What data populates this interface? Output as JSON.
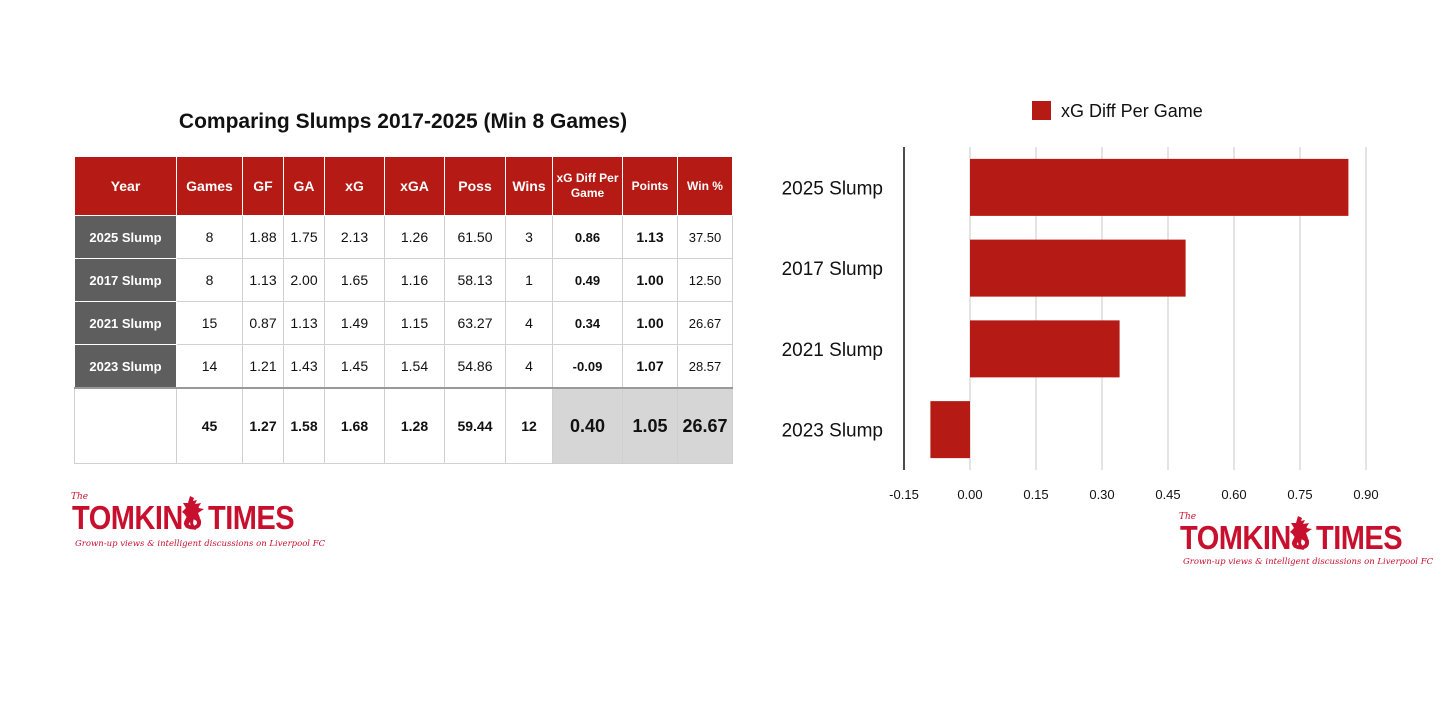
{
  "table": {
    "title": "Comparing Slumps 2017-2025 (Min 8 Games)",
    "headers": [
      "Year",
      "Games",
      "GF",
      "GA",
      "xG",
      "xGA",
      "Poss",
      "Wins",
      "xG Diff Per Game",
      "Points",
      "Win %"
    ],
    "rows": [
      [
        "2025 Slump",
        "8",
        "1.88",
        "1.75",
        "2.13",
        "1.26",
        "61.50",
        "3",
        "0.86",
        "1.13",
        "37.50"
      ],
      [
        "2017 Slump",
        "8",
        "1.13",
        "2.00",
        "1.65",
        "1.16",
        "58.13",
        "1",
        "0.49",
        "1.00",
        "12.50"
      ],
      [
        "2021 Slump",
        "15",
        "0.87",
        "1.13",
        "1.49",
        "1.15",
        "63.27",
        "4",
        "0.34",
        "1.00",
        "26.67"
      ],
      [
        "2023 Slump",
        "14",
        "1.21",
        "1.43",
        "1.45",
        "1.54",
        "54.86",
        "4",
        "-0.09",
        "1.07",
        "28.57"
      ]
    ],
    "totals": [
      "",
      "45",
      "1.27",
      "1.58",
      "1.68",
      "1.28",
      "59.44",
      "12",
      "0.40",
      "1.05",
      "26.67"
    ]
  },
  "logo_left": {
    "the": "The",
    "name_a": "TOMKINS",
    "name_b": "TIMES",
    "tagline": "Grown-up views & intelligent discussions on Liverpool FC"
  },
  "logo_right": {
    "the": "The",
    "name_a": "TOMKINS",
    "name_b": "TIMES",
    "tagline": "Grown-up views & intelligent discussions on Liverpool FC"
  },
  "chart_data": {
    "type": "bar",
    "orientation": "horizontal",
    "categories": [
      "2025 Slump",
      "2017 Slump",
      "2021 Slump",
      "2023 Slump"
    ],
    "series": [
      {
        "name": "xG Diff Per Game",
        "values": [
          0.86,
          0.49,
          0.34,
          -0.09
        ]
      }
    ],
    "xlim": [
      -0.15,
      0.9
    ],
    "xticks": [
      "-0.15",
      "0.00",
      "0.15",
      "0.30",
      "0.45",
      "0.60",
      "0.75",
      "0.90"
    ],
    "grid": true,
    "legend": "top-center",
    "colors": {
      "bar": "#b51a14",
      "grid": "#c8c8c8",
      "axis": "#111111"
    }
  }
}
